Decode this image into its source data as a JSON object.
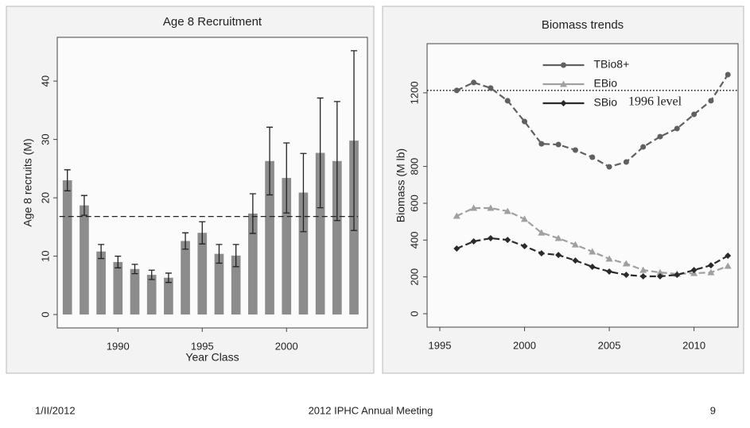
{
  "chart_data": [
    {
      "type": "bar",
      "title": "Age 8 Recruitment",
      "xlabel": "Year Class",
      "ylabel": "Age 8 recruits (M)",
      "x": [
        1987,
        1988,
        1989,
        1990,
        1991,
        1992,
        1993,
        1994,
        1995,
        1996,
        1997,
        1998,
        1999,
        2000,
        2001,
        2002,
        2003,
        2004
      ],
      "values": [
        23.0,
        18.7,
        10.8,
        9.0,
        7.8,
        6.8,
        6.3,
        12.6,
        14.0,
        10.4,
        10.1,
        17.3,
        26.3,
        23.4,
        20.9,
        27.7,
        26.3,
        29.8
      ],
      "errors": [
        1.8,
        1.7,
        1.2,
        1.0,
        0.8,
        0.8,
        0.8,
        1.4,
        1.9,
        1.6,
        1.9,
        3.4,
        5.8,
        6.0,
        6.7,
        9.4,
        10.2,
        15.4
      ],
      "color": "#8c8c8c",
      "reference_line": 16.8,
      "xlim": [
        1986.4,
        2004.8
      ],
      "xticks": [
        1990,
        1995,
        2000
      ],
      "ylim": [
        -2.3,
        47.5
      ],
      "yticks": [
        0,
        10,
        20,
        30,
        40
      ]
    },
    {
      "type": "line",
      "title": "Biomass trends",
      "ylabel": "Biomass (M lb)",
      "x": [
        1996,
        1997,
        1998,
        1999,
        2000,
        2001,
        2002,
        2003,
        2004,
        2005,
        2006,
        2007,
        2008,
        2009,
        2010,
        2011,
        2012
      ],
      "series": [
        {
          "name": "TBio8+",
          "color": "#606060",
          "marker": "circle",
          "values": [
            1213,
            1256,
            1226,
            1157,
            1044,
            923,
            919,
            889,
            850,
            798,
            824,
            906,
            962,
            1006,
            1083,
            1157,
            1299
          ]
        },
        {
          "name": "EBio",
          "color": "#a0a0a0",
          "marker": "triangle",
          "values": [
            531,
            574,
            574,
            557,
            514,
            440,
            410,
            375,
            337,
            298,
            272,
            237,
            224,
            216,
            220,
            224,
            259
          ]
        },
        {
          "name": "SBio",
          "color": "#2a2a2a",
          "marker": "diamond",
          "values": [
            354,
            393,
            410,
            401,
            367,
            328,
            319,
            289,
            255,
            229,
            211,
            203,
            203,
            211,
            237,
            263,
            315
          ]
        }
      ],
      "reference_line": 1213,
      "reference_label": "1996 level",
      "legend": "upper center",
      "xlim": [
        1994.25,
        2012.6
      ],
      "xticks": [
        1995,
        2000,
        2005,
        2010
      ],
      "ylim": [
        -73,
        1467
      ],
      "yticks": [
        0,
        200,
        400,
        600,
        800,
        1200
      ]
    }
  ],
  "footer": {
    "date": "1/II/2012",
    "title": "2012 IPHC Annual Meeting",
    "page": 9
  }
}
